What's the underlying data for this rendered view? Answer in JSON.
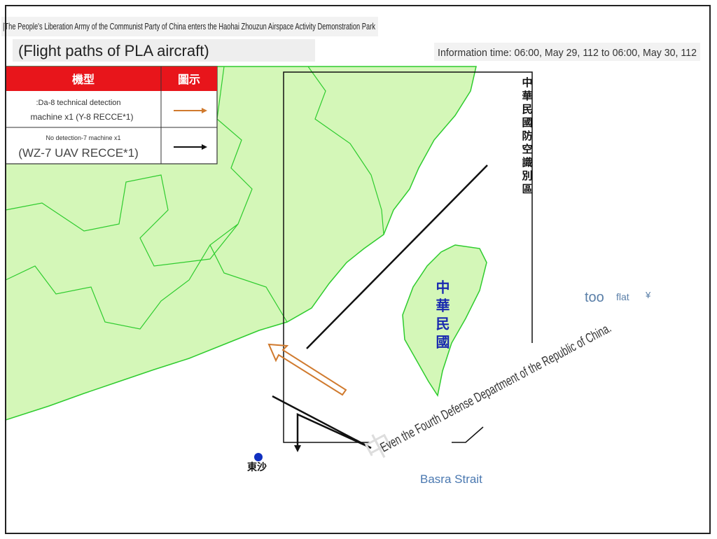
{
  "header": {
    "banner": "|The People's Liberation Army of the Communist Party of China enters the Haohai Zhouzun Airspace Activity Demonstration Park",
    "title": "(Flight paths of PLA aircraft)",
    "info_time": "Information time: 06:00, May 29, 112 to 06:00, May 30, 112"
  },
  "legend": {
    "headers": [
      "機型",
      "圖示"
    ],
    "rows": [
      {
        "lines": [
          ":Da-8 technical detection",
          "machine x1 (Y-8 RECCE*1)"
        ]
      },
      {
        "lines": [
          "No detection-7 machine x1",
          "(WZ-7 UAV RECCE*1)"
        ]
      }
    ]
  },
  "map": {
    "adiz_label": "中華民國防空識別區",
    "taiwan_label": "中華民國",
    "dongsha_label": "東沙",
    "east_labels": [
      "too",
      "flat",
      "¥"
    ],
    "watermark_mark": "中",
    "watermark": "Even the Fourth Defense Department of the Republic of China.",
    "strait_label": "Basra Strait"
  }
}
